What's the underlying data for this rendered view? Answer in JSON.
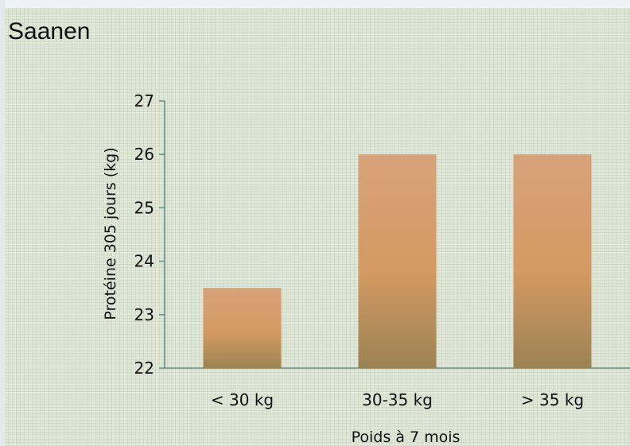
{
  "chart_data": {
    "type": "bar",
    "title": "Saanen",
    "xlabel": "Poids à 7 mois",
    "ylabel": "Protéine 305 jours (kg)",
    "categories": [
      "< 30 kg",
      "30-35 kg",
      "> 35 kg"
    ],
    "values": [
      23.5,
      26,
      26
    ],
    "ylim": [
      22,
      27
    ],
    "yticks": [
      22,
      23,
      24,
      25,
      26,
      27
    ],
    "grid": false,
    "legend": "none",
    "colors": {
      "bar_top": "#d8a27a",
      "bar_mid": "#d49a62",
      "bar_bottom": "#9c8354",
      "axis": "#5f8f84"
    }
  }
}
